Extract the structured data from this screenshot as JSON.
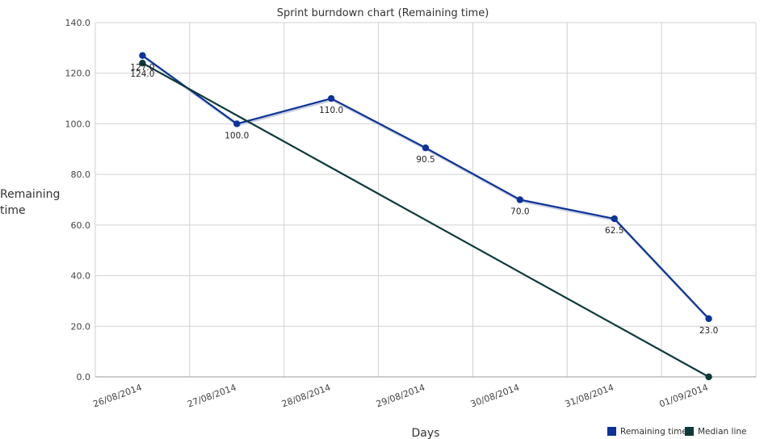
{
  "chart_data": {
    "type": "line",
    "title": "Sprint burndown chart (Remaining time)",
    "xlabel": "Days",
    "ylabel": [
      "Remaining",
      "time"
    ],
    "categories": [
      "26/08/2014",
      "27/08/2014",
      "28/08/2014",
      "29/08/2014",
      "30/08/2014",
      "31/08/2014",
      "01/09/2014"
    ],
    "ylim": [
      0,
      140
    ],
    "yticks": [
      "0.0",
      "20.0",
      "40.0",
      "60.0",
      "80.0",
      "100.0",
      "120.0",
      "140.0"
    ],
    "grid": true,
    "legend_position": "bottom-right",
    "series": [
      {
        "name": "Remaining time",
        "color": "#0b3399",
        "values": [
          127.0,
          100.0,
          110.0,
          90.5,
          70.0,
          62.5,
          23.0
        ],
        "labels": [
          "127.0",
          "100.0",
          "110.0",
          "90.5",
          "70.0",
          "62.5",
          "23.0"
        ]
      },
      {
        "name": "Median line",
        "color": "#0d3a3a",
        "values": [
          124.0,
          103.33,
          82.67,
          62.0,
          41.33,
          20.67,
          0.0
        ],
        "labels": [
          "124.0"
        ]
      }
    ]
  }
}
